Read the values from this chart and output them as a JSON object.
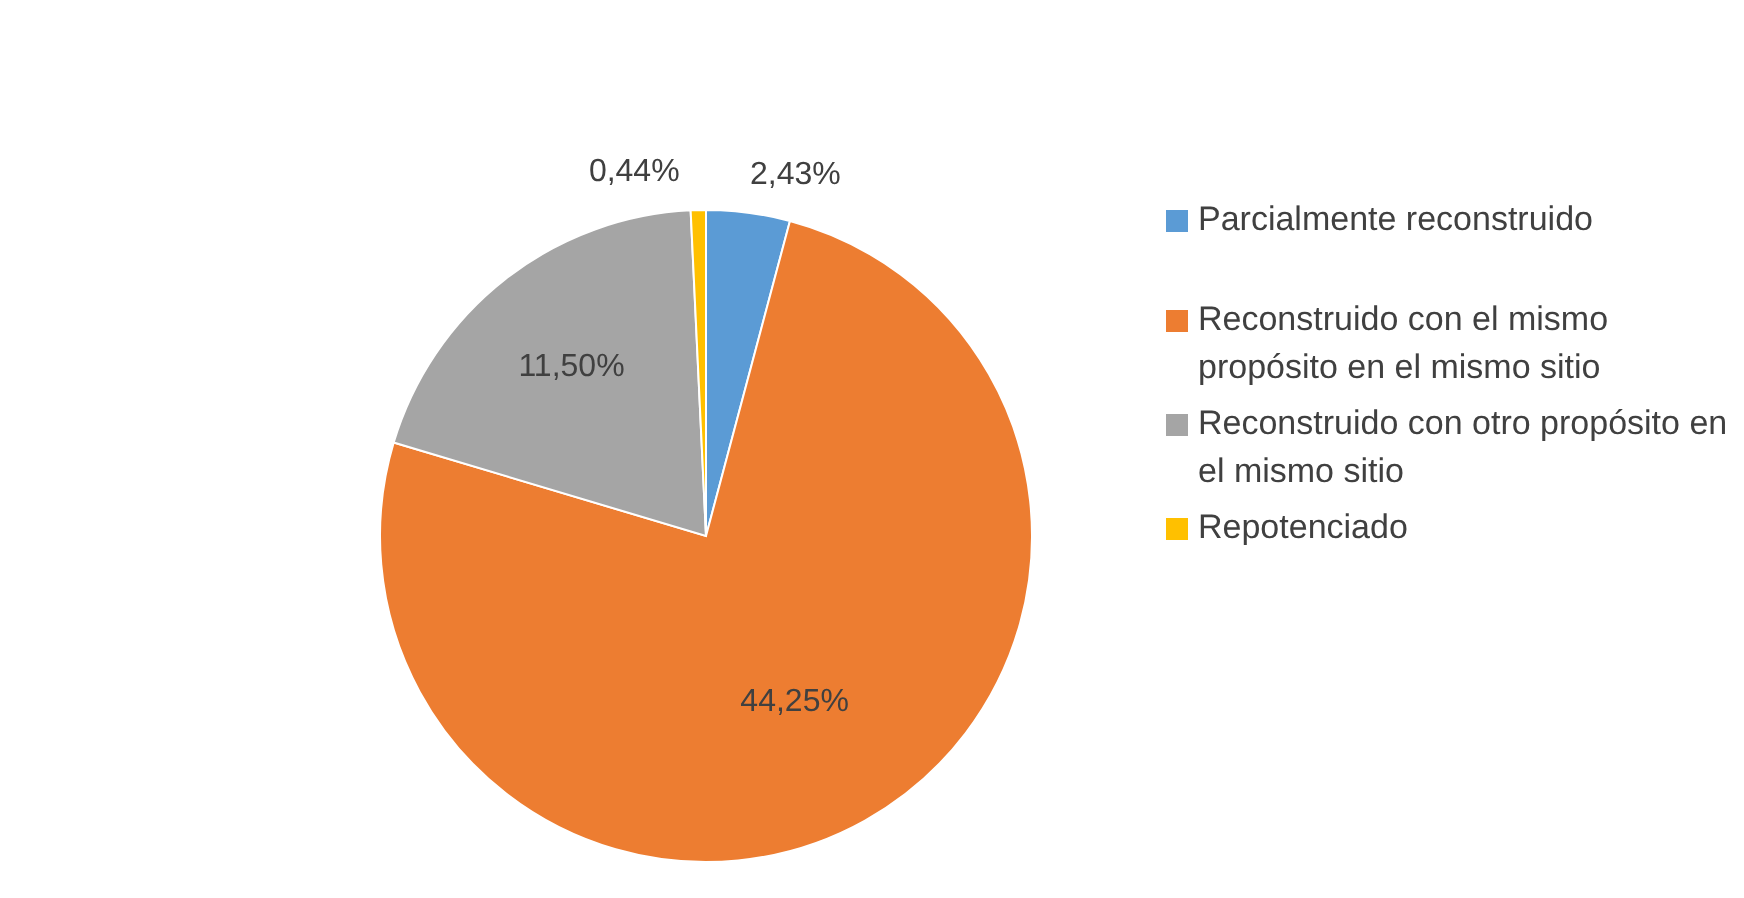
{
  "chart_data": {
    "type": "pie",
    "categories": [
      "Parcialmente reconstruido",
      "Reconstruido con el mismo propósito en el mismo sitio",
      "Reconstruido con otro propósito en el mismo sitio",
      "Repotenciado"
    ],
    "values": [
      2.43,
      44.25,
      11.5,
      0.44
    ],
    "colors": [
      "#5b9bd5",
      "#ed7d31",
      "#a5a5a5",
      "#ffc000"
    ],
    "value_labels": [
      "2,43%",
      "44,25%",
      "11,50%",
      "0,44%"
    ],
    "legend": "right"
  }
}
